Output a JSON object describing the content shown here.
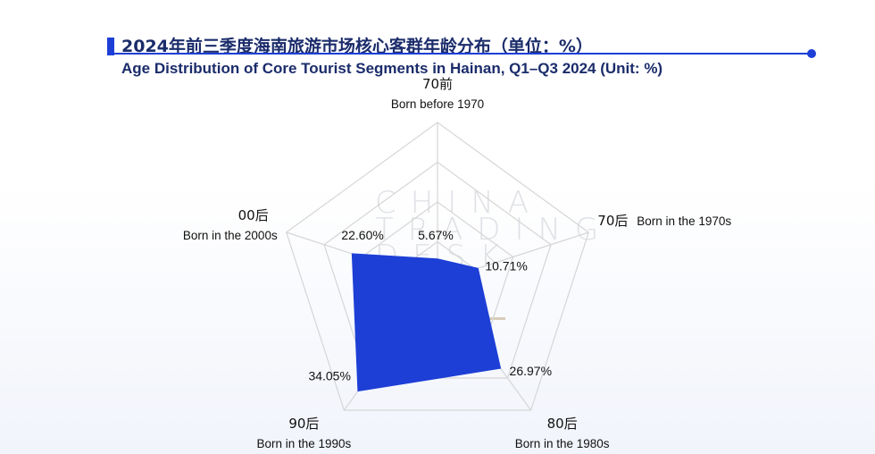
{
  "title_cn": "2024年前三季度海南旅游市场核心客群年龄分布（单位：%）",
  "title_en": "Age Distribution of Core Tourist Segments in Hainan, Q1–Q3 2024 (Unit: %)",
  "watermark": [
    "CHINA",
    "TRADING",
    "DESK"
  ],
  "colors": {
    "accent": "#1d3fd6",
    "series_fill": "#1d3fd6",
    "grid": "#d6d6d6",
    "title": "#1b2c6b"
  },
  "chart_data": {
    "type": "radar",
    "axes": [
      {
        "cn": "70前",
        "en": "Born before 1970"
      },
      {
        "cn": "70后",
        "en": "Born in the 1970s"
      },
      {
        "cn": "80后",
        "en": "Born in the 1980s"
      },
      {
        "cn": "90后",
        "en": "Born in the 1990s"
      },
      {
        "cn": "00后",
        "en": "Born in the 2000s"
      }
    ],
    "values": [
      5.67,
      10.71,
      26.97,
      34.05,
      22.6
    ],
    "value_labels": [
      "5.67%",
      "10.71%",
      "26.97%",
      "34.05%",
      "22.60%"
    ],
    "range": [
      0,
      40
    ],
    "grid_levels": 4,
    "grid": true,
    "legend": "none"
  }
}
